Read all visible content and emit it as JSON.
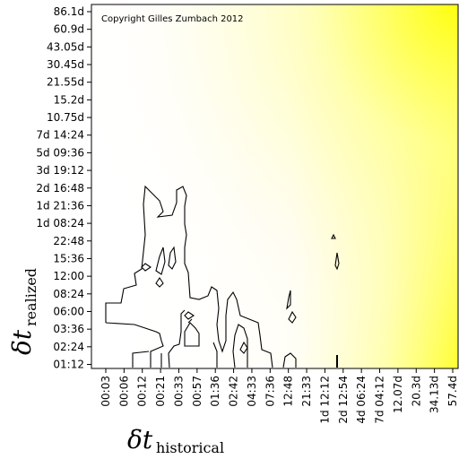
{
  "chart_data": {
    "type": "heatmap",
    "subtype": "contour",
    "annotation": "Copyright Gilles Zumbach 2012",
    "xlabel": {
      "symbol": "δt",
      "subscript": "historical"
    },
    "ylabel": {
      "symbol": "δt",
      "subscript": "realized"
    },
    "x_ticks": [
      "00:03",
      "00:06",
      "00:12",
      "00:21",
      "00:33",
      "00:57",
      "01:36",
      "02:42",
      "04:33",
      "07:36",
      "12:48",
      "21:33",
      "1d 12:12",
      "2d 12:54",
      "4d 06:24",
      "7d 04:12",
      "12.07d",
      "20.3d",
      "34.13d",
      "57.4d"
    ],
    "y_ticks": [
      "01:12",
      "02:24",
      "03:36",
      "06:00",
      "08:24",
      "12:00",
      "15:36",
      "22:48",
      "1d 08:24",
      "1d 21:36",
      "2d 16:48",
      "3d 19:12",
      "5d 09:36",
      "7d 14:24",
      "10.75d",
      "15.2d",
      "21.55d",
      "30.45d",
      "43.05d",
      "60.9d",
      "86.1d"
    ],
    "color_scale": {
      "low": "#ffffff",
      "high": "#ffff20"
    },
    "grid": false,
    "legend": "none"
  }
}
